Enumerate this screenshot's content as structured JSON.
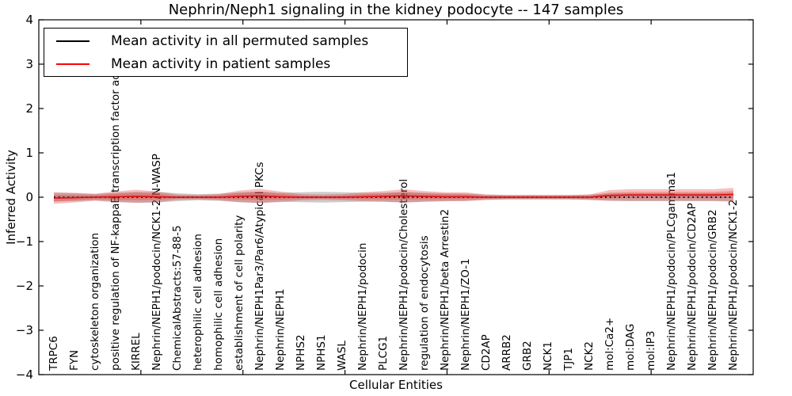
{
  "title": "Nephrin/Neph1 signaling in the kidney podocyte -- 147 samples",
  "legend": {
    "items": [
      {
        "label": "Mean activity in all permuted samples",
        "color": "#000000"
      },
      {
        "label": "Mean activity in patient samples",
        "color": "#ff0000"
      }
    ],
    "position": "upper left"
  },
  "colors": {
    "permuted_line": "#000000",
    "patient_line": "#dd1111",
    "patient_band": "#e03030",
    "permuted_band": "#787878",
    "axis": "#000000",
    "background": "#ffffff"
  },
  "chart_data": {
    "type": "line",
    "title": "Nephrin/Neph1 signaling in the kidney podocyte -- 147 samples",
    "xlabel": "Cellular Entities",
    "ylabel": "Inferred Activity",
    "ylim": [
      -4,
      4
    ],
    "yticks": [
      -4,
      -3,
      -2,
      -1,
      0,
      1,
      2,
      3,
      4
    ],
    "xlim": [
      0,
      35
    ],
    "x_tick_positions": [
      5,
      10,
      15,
      20,
      25,
      30
    ],
    "grid": false,
    "legend_position": "upper left",
    "categories": [
      "TRPC6",
      "FYN",
      "cytoskeleton organization",
      "positive regulation of NF-kappaB transcription factor activity",
      "KIRREL",
      "Nephrin/NEPH1/podocin/NCK1-2/N-WASP",
      "ChemicalAbstracts:57-88-5",
      "heterophilic cell adhesion",
      "homophilic cell adhesion",
      "establishment of cell polarity",
      "Nephrin/NEPH1Par3/Par6/Atypical PKCs",
      "Nephrin/NEPH1",
      "NPHS2",
      "NPHS1",
      "WASL",
      "Nephrin/NEPH1/podocin",
      "PLCG1",
      "Nephrin/NEPH1/podocin/Cholesterol",
      "regulation of endocytosis",
      "Nephrin/NEPH1/beta Arrestin2",
      "Nephrin/NEPH1/ZO-1",
      "CD2AP",
      "ARRB2",
      "GRB2",
      "NCK1",
      "TJP1",
      "NCK2",
      "mol:Ca2+",
      "mol:DAG",
      "mol:IP3",
      "Nephrin/NEPH1/podocin/PLCgamma1",
      "Nephrin/NEPH1/podocin/CD2AP",
      "Nephrin/NEPH1/podocin/GRB2",
      "Nephrin/NEPH1/podocin/NCK1-2"
    ],
    "series": [
      {
        "name": "Mean activity in all permuted samples",
        "color": "#000000",
        "style": "dotted",
        "values": [
          0,
          0,
          0,
          0,
          0,
          0,
          0,
          0,
          0,
          0,
          0,
          0,
          0,
          0,
          0,
          0,
          0,
          0,
          0,
          0,
          0,
          0,
          0,
          0,
          0,
          0,
          0,
          0,
          0,
          0,
          0,
          0,
          0,
          0
        ],
        "band_halfwidth": [
          0.1,
          0.09,
          0.07,
          0.1,
          0.12,
          0.12,
          0.09,
          0.07,
          0.08,
          0.11,
          0.13,
          0.1,
          0.11,
          0.12,
          0.11,
          0.1,
          0.1,
          0.12,
          0.1,
          0.09,
          0.08,
          0.06,
          0.05,
          0.05,
          0.05,
          0.05,
          0.06,
          0.08,
          0.09,
          0.09,
          0.09,
          0.09,
          0.09,
          0.1
        ]
      },
      {
        "name": "Mean activity in patient samples",
        "color": "#ff0000",
        "style": "solid",
        "values": [
          -0.02,
          -0.01,
          0,
          0.01,
          0.02,
          0.01,
          0,
          0,
          0,
          0.02,
          0.03,
          0.01,
          0,
          0,
          0,
          0.01,
          0.02,
          0.03,
          0.02,
          0.01,
          0.01,
          0,
          0,
          0,
          0,
          0,
          0,
          0.04,
          0.05,
          0.05,
          0.05,
          0.05,
          0.05,
          0.06
        ],
        "band_halfwidth": [
          0.13,
          0.11,
          0.08,
          0.12,
          0.15,
          0.12,
          0.06,
          0.05,
          0.07,
          0.13,
          0.16,
          0.12,
          0.07,
          0.06,
          0.07,
          0.1,
          0.12,
          0.15,
          0.12,
          0.1,
          0.1,
          0.06,
          0.05,
          0.05,
          0.05,
          0.05,
          0.06,
          0.12,
          0.13,
          0.13,
          0.13,
          0.13,
          0.13,
          0.15
        ]
      }
    ]
  }
}
